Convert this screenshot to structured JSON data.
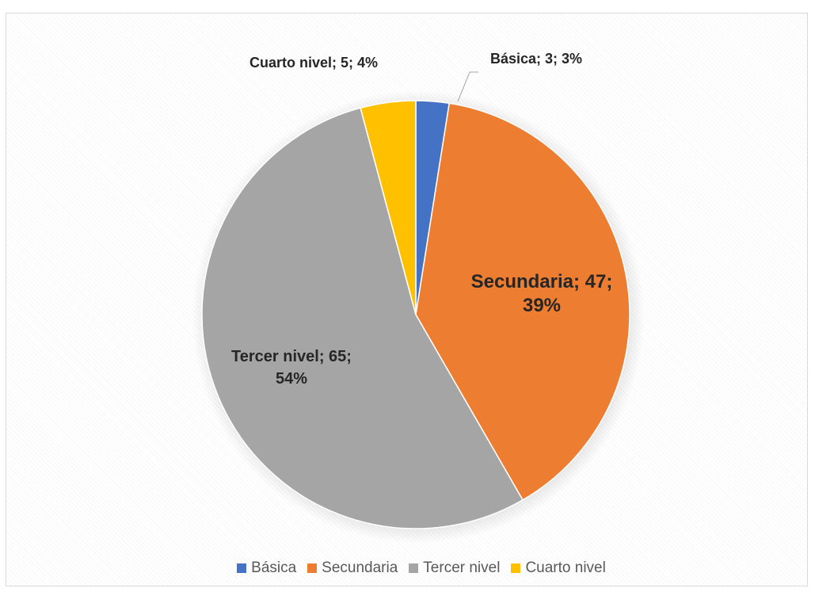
{
  "chart_data": {
    "type": "pie",
    "title": "",
    "slices": [
      {
        "category": "Básica",
        "value": 3,
        "percent": "3%",
        "label": "Básica; 3; 3%",
        "color": "#4472c4"
      },
      {
        "category": "Secundaria",
        "value": 47,
        "percent": "39%",
        "label": "Secundaria; 47; 39%",
        "label_lines": [
          "Secundaria; 47;",
          "39%"
        ],
        "color": "#ed7d31"
      },
      {
        "category": "Tercer nivel",
        "value": 65,
        "percent": "54%",
        "label": "Tercer nivel; 65; 54%",
        "label_lines": [
          "Tercer nivel; 65;",
          "54%"
        ],
        "color": "#a5a5a5"
      },
      {
        "category": "Cuarto nivel",
        "value": 5,
        "percent": "4%",
        "label": "Cuarto nivel; 5; 4%",
        "color": "#ffc000"
      }
    ],
    "legend_placement": "bottom",
    "legend": [
      "Básica",
      "Secundaria",
      "Tercer nivel",
      "Cuarto nivel"
    ]
  }
}
